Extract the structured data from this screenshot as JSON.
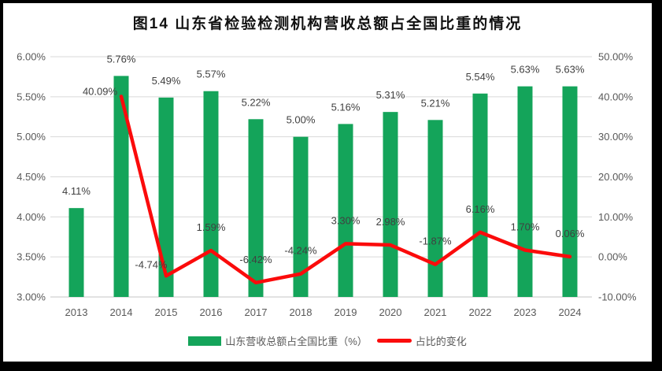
{
  "title": "图14  山东省检验检测机构营收总额占全国比重的情况",
  "legend": {
    "bar_label": "山东营收总额占全国比重（%）",
    "line_label": "占比的变化"
  },
  "colors": {
    "bar": "#14A45A",
    "line": "#FB0B0B",
    "grid": "#D9D9D9",
    "axis_line": "#C6C6C6",
    "axis_text": "#595959",
    "data_label": "#404040",
    "background": "#FFFFFF",
    "frame": "#000000"
  },
  "chart_data": {
    "type": "bar",
    "subtype": "bar-line-combo",
    "title": "图14  山东省检验检测机构营收总额占全国比重的情况",
    "categories": [
      "2013",
      "2014",
      "2015",
      "2016",
      "2017",
      "2018",
      "2019",
      "2020",
      "2021",
      "2022",
      "2023",
      "2024"
    ],
    "series": [
      {
        "name": "山东营收总额占全国比重（%）",
        "type": "bar",
        "axis": "left",
        "values": [
          4.11,
          5.76,
          5.49,
          5.57,
          5.22,
          5.0,
          5.16,
          5.31,
          5.21,
          5.54,
          5.63,
          5.63
        ]
      },
      {
        "name": "占比的变化",
        "type": "line",
        "axis": "right",
        "values": [
          null,
          40.09,
          -4.74,
          1.59,
          -6.42,
          -4.24,
          3.3,
          2.98,
          -1.87,
          6.16,
          1.7,
          0.06
        ]
      }
    ],
    "left_axis": {
      "min": 3,
      "max": 6,
      "ticks": [
        "3.00%",
        "3.50%",
        "4.00%",
        "4.50%",
        "5.00%",
        "5.50%",
        "6.00%"
      ]
    },
    "right_axis": {
      "min": -10,
      "max": 50,
      "ticks": [
        "-10.00%",
        "0.00%",
        "10.00%",
        "20.00%",
        "30.00%",
        "40.00%",
        "50.00%"
      ]
    },
    "grid": true,
    "legend_position": "bottom",
    "data_labels": true
  }
}
